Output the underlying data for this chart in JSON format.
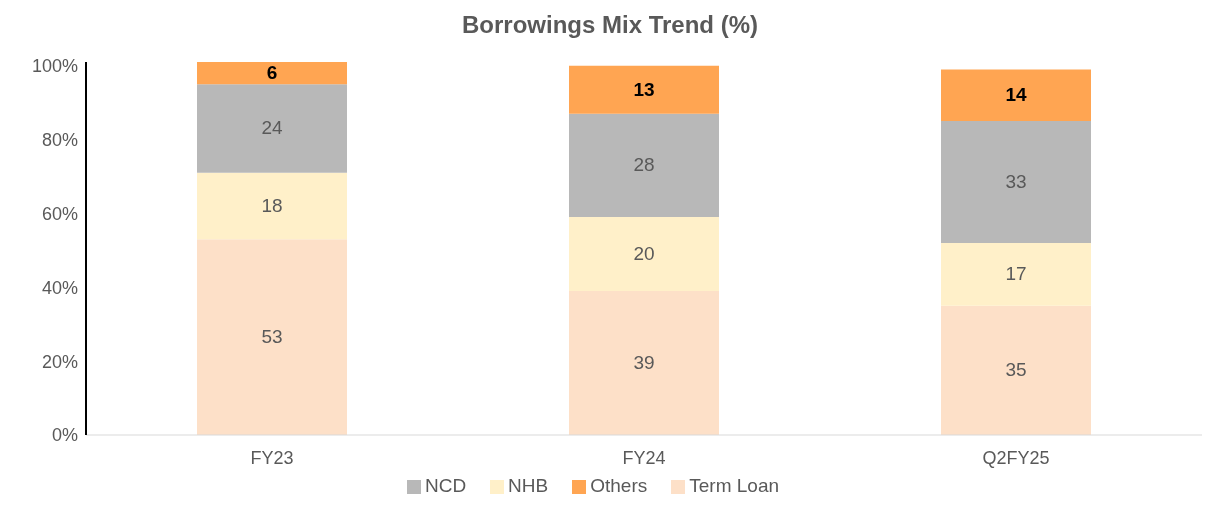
{
  "chart_data": {
    "type": "bar",
    "title": "Borrowings Mix Trend (%)",
    "categories": [
      "FY23",
      "FY24",
      "Q2FY25"
    ],
    "stacked": true,
    "series": [
      {
        "name": "Term Loan",
        "color": "#fde0c8",
        "values": [
          53,
          39,
          35
        ]
      },
      {
        "name": "NHB",
        "color": "#fff0c9",
        "values": [
          18,
          20,
          17
        ]
      },
      {
        "name": "NCD",
        "color": "#b8b8b8",
        "values": [
          24,
          28,
          33
        ]
      },
      {
        "name": "Others",
        "color": "#ffa552",
        "values": [
          6,
          13,
          14
        ]
      }
    ],
    "ylim": [
      0,
      101
    ],
    "yticks": [
      {
        "value": 0,
        "label": "0%"
      },
      {
        "value": 20,
        "label": "20%"
      },
      {
        "value": 40,
        "label": "40%"
      },
      {
        "value": 60,
        "label": "60%"
      },
      {
        "value": 80,
        "label": "80%"
      },
      {
        "value": 100,
        "label": "100%"
      }
    ],
    "grid": false,
    "legend": "bottom",
    "data_labels": true
  }
}
